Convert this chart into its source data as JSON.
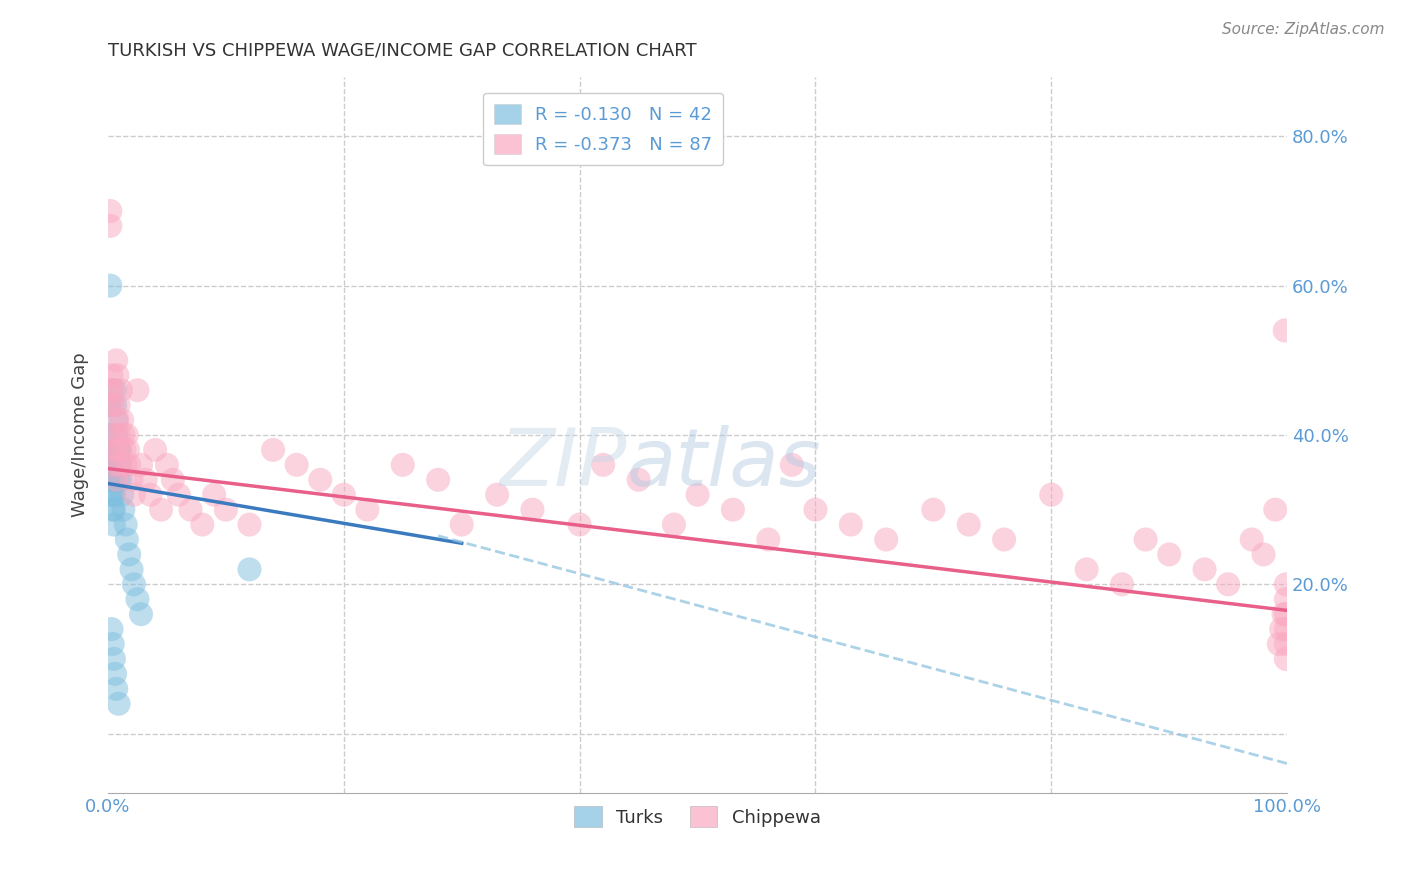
{
  "title": "TURKISH VS CHIPPEWA WAGE/INCOME GAP CORRELATION CHART",
  "source": "Source: ZipAtlas.com",
  "ylabel": "Wage/Income Gap",
  "turks_color": "#7fbfdf",
  "chippewa_color": "#f9a8c0",
  "turks_line_color": "#3a7abf",
  "chippewa_line_color": "#e8608a",
  "dashed_line_color": "#90c4e0",
  "background_color": "#ffffff",
  "grid_color": "#cccccc",
  "tick_color": "#5b9bd5",
  "legend_turks": "R = -0.130   N = 42",
  "legend_chippewa": "R = -0.373   N = 87",
  "xlim": [
    0.0,
    1.0
  ],
  "ylim": [
    -0.08,
    0.88
  ],
  "ytick_positions": [
    0.0,
    0.2,
    0.4,
    0.6,
    0.8
  ],
  "xtick_positions": [
    0.0,
    0.2,
    0.4,
    0.6,
    0.8,
    1.0
  ],
  "turks_x": [
    0.001,
    0.001,
    0.001,
    0.002,
    0.002,
    0.002,
    0.003,
    0.003,
    0.003,
    0.004,
    0.004,
    0.004,
    0.005,
    0.005,
    0.005,
    0.006,
    0.006,
    0.007,
    0.007,
    0.008,
    0.008,
    0.009,
    0.01,
    0.01,
    0.011,
    0.012,
    0.013,
    0.015,
    0.016,
    0.018,
    0.02,
    0.022,
    0.025,
    0.028,
    0.003,
    0.004,
    0.005,
    0.006,
    0.007,
    0.009,
    0.12,
    0.002
  ],
  "turks_y": [
    0.37,
    0.4,
    0.44,
    0.34,
    0.36,
    0.38,
    0.32,
    0.34,
    0.36,
    0.3,
    0.32,
    0.34,
    0.28,
    0.3,
    0.32,
    0.44,
    0.46,
    0.42,
    0.4,
    0.38,
    0.36,
    0.34,
    0.38,
    0.36,
    0.34,
    0.32,
    0.3,
    0.28,
    0.26,
    0.24,
    0.22,
    0.2,
    0.18,
    0.16,
    0.14,
    0.12,
    0.1,
    0.08,
    0.06,
    0.04,
    0.22,
    0.6
  ],
  "chippewa_x": [
    0.001,
    0.002,
    0.002,
    0.003,
    0.003,
    0.004,
    0.004,
    0.005,
    0.005,
    0.006,
    0.006,
    0.007,
    0.007,
    0.008,
    0.008,
    0.009,
    0.009,
    0.01,
    0.01,
    0.011,
    0.012,
    0.013,
    0.014,
    0.015,
    0.016,
    0.017,
    0.018,
    0.02,
    0.022,
    0.025,
    0.028,
    0.032,
    0.036,
    0.04,
    0.045,
    0.05,
    0.055,
    0.06,
    0.07,
    0.08,
    0.09,
    0.1,
    0.12,
    0.14,
    0.16,
    0.18,
    0.2,
    0.22,
    0.25,
    0.28,
    0.3,
    0.33,
    0.36,
    0.4,
    0.42,
    0.45,
    0.48,
    0.5,
    0.53,
    0.56,
    0.58,
    0.6,
    0.63,
    0.66,
    0.7,
    0.73,
    0.76,
    0.8,
    0.83,
    0.86,
    0.88,
    0.9,
    0.93,
    0.95,
    0.97,
    0.98,
    0.99,
    0.993,
    0.995,
    0.997,
    0.998,
    0.999,
    0.999,
    0.999,
    0.999,
    0.999,
    0.999
  ],
  "chippewa_y": [
    0.44,
    0.68,
    0.7,
    0.46,
    0.48,
    0.44,
    0.46,
    0.38,
    0.4,
    0.36,
    0.38,
    0.34,
    0.5,
    0.48,
    0.42,
    0.4,
    0.44,
    0.38,
    0.36,
    0.46,
    0.42,
    0.4,
    0.38,
    0.36,
    0.4,
    0.38,
    0.36,
    0.34,
    0.32,
    0.46,
    0.36,
    0.34,
    0.32,
    0.38,
    0.3,
    0.36,
    0.34,
    0.32,
    0.3,
    0.28,
    0.32,
    0.3,
    0.28,
    0.38,
    0.36,
    0.34,
    0.32,
    0.3,
    0.36,
    0.34,
    0.28,
    0.32,
    0.3,
    0.28,
    0.36,
    0.34,
    0.28,
    0.32,
    0.3,
    0.26,
    0.36,
    0.3,
    0.28,
    0.26,
    0.3,
    0.28,
    0.26,
    0.32,
    0.22,
    0.2,
    0.26,
    0.24,
    0.22,
    0.2,
    0.26,
    0.24,
    0.3,
    0.12,
    0.14,
    0.16,
    0.54,
    0.1,
    0.12,
    0.14,
    0.16,
    0.18,
    0.2
  ],
  "turks_line_x0": 0.0,
  "turks_line_x1": 0.3,
  "turks_line_y0": 0.335,
  "turks_line_y1": 0.255,
  "chippewa_line_x0": 0.0,
  "chippewa_line_x1": 1.0,
  "chippewa_line_y0": 0.355,
  "chippewa_line_y1": 0.165,
  "dashed_line_x0": 0.28,
  "dashed_line_x1": 1.0,
  "dashed_line_y0": 0.265,
  "dashed_line_y1": -0.04
}
